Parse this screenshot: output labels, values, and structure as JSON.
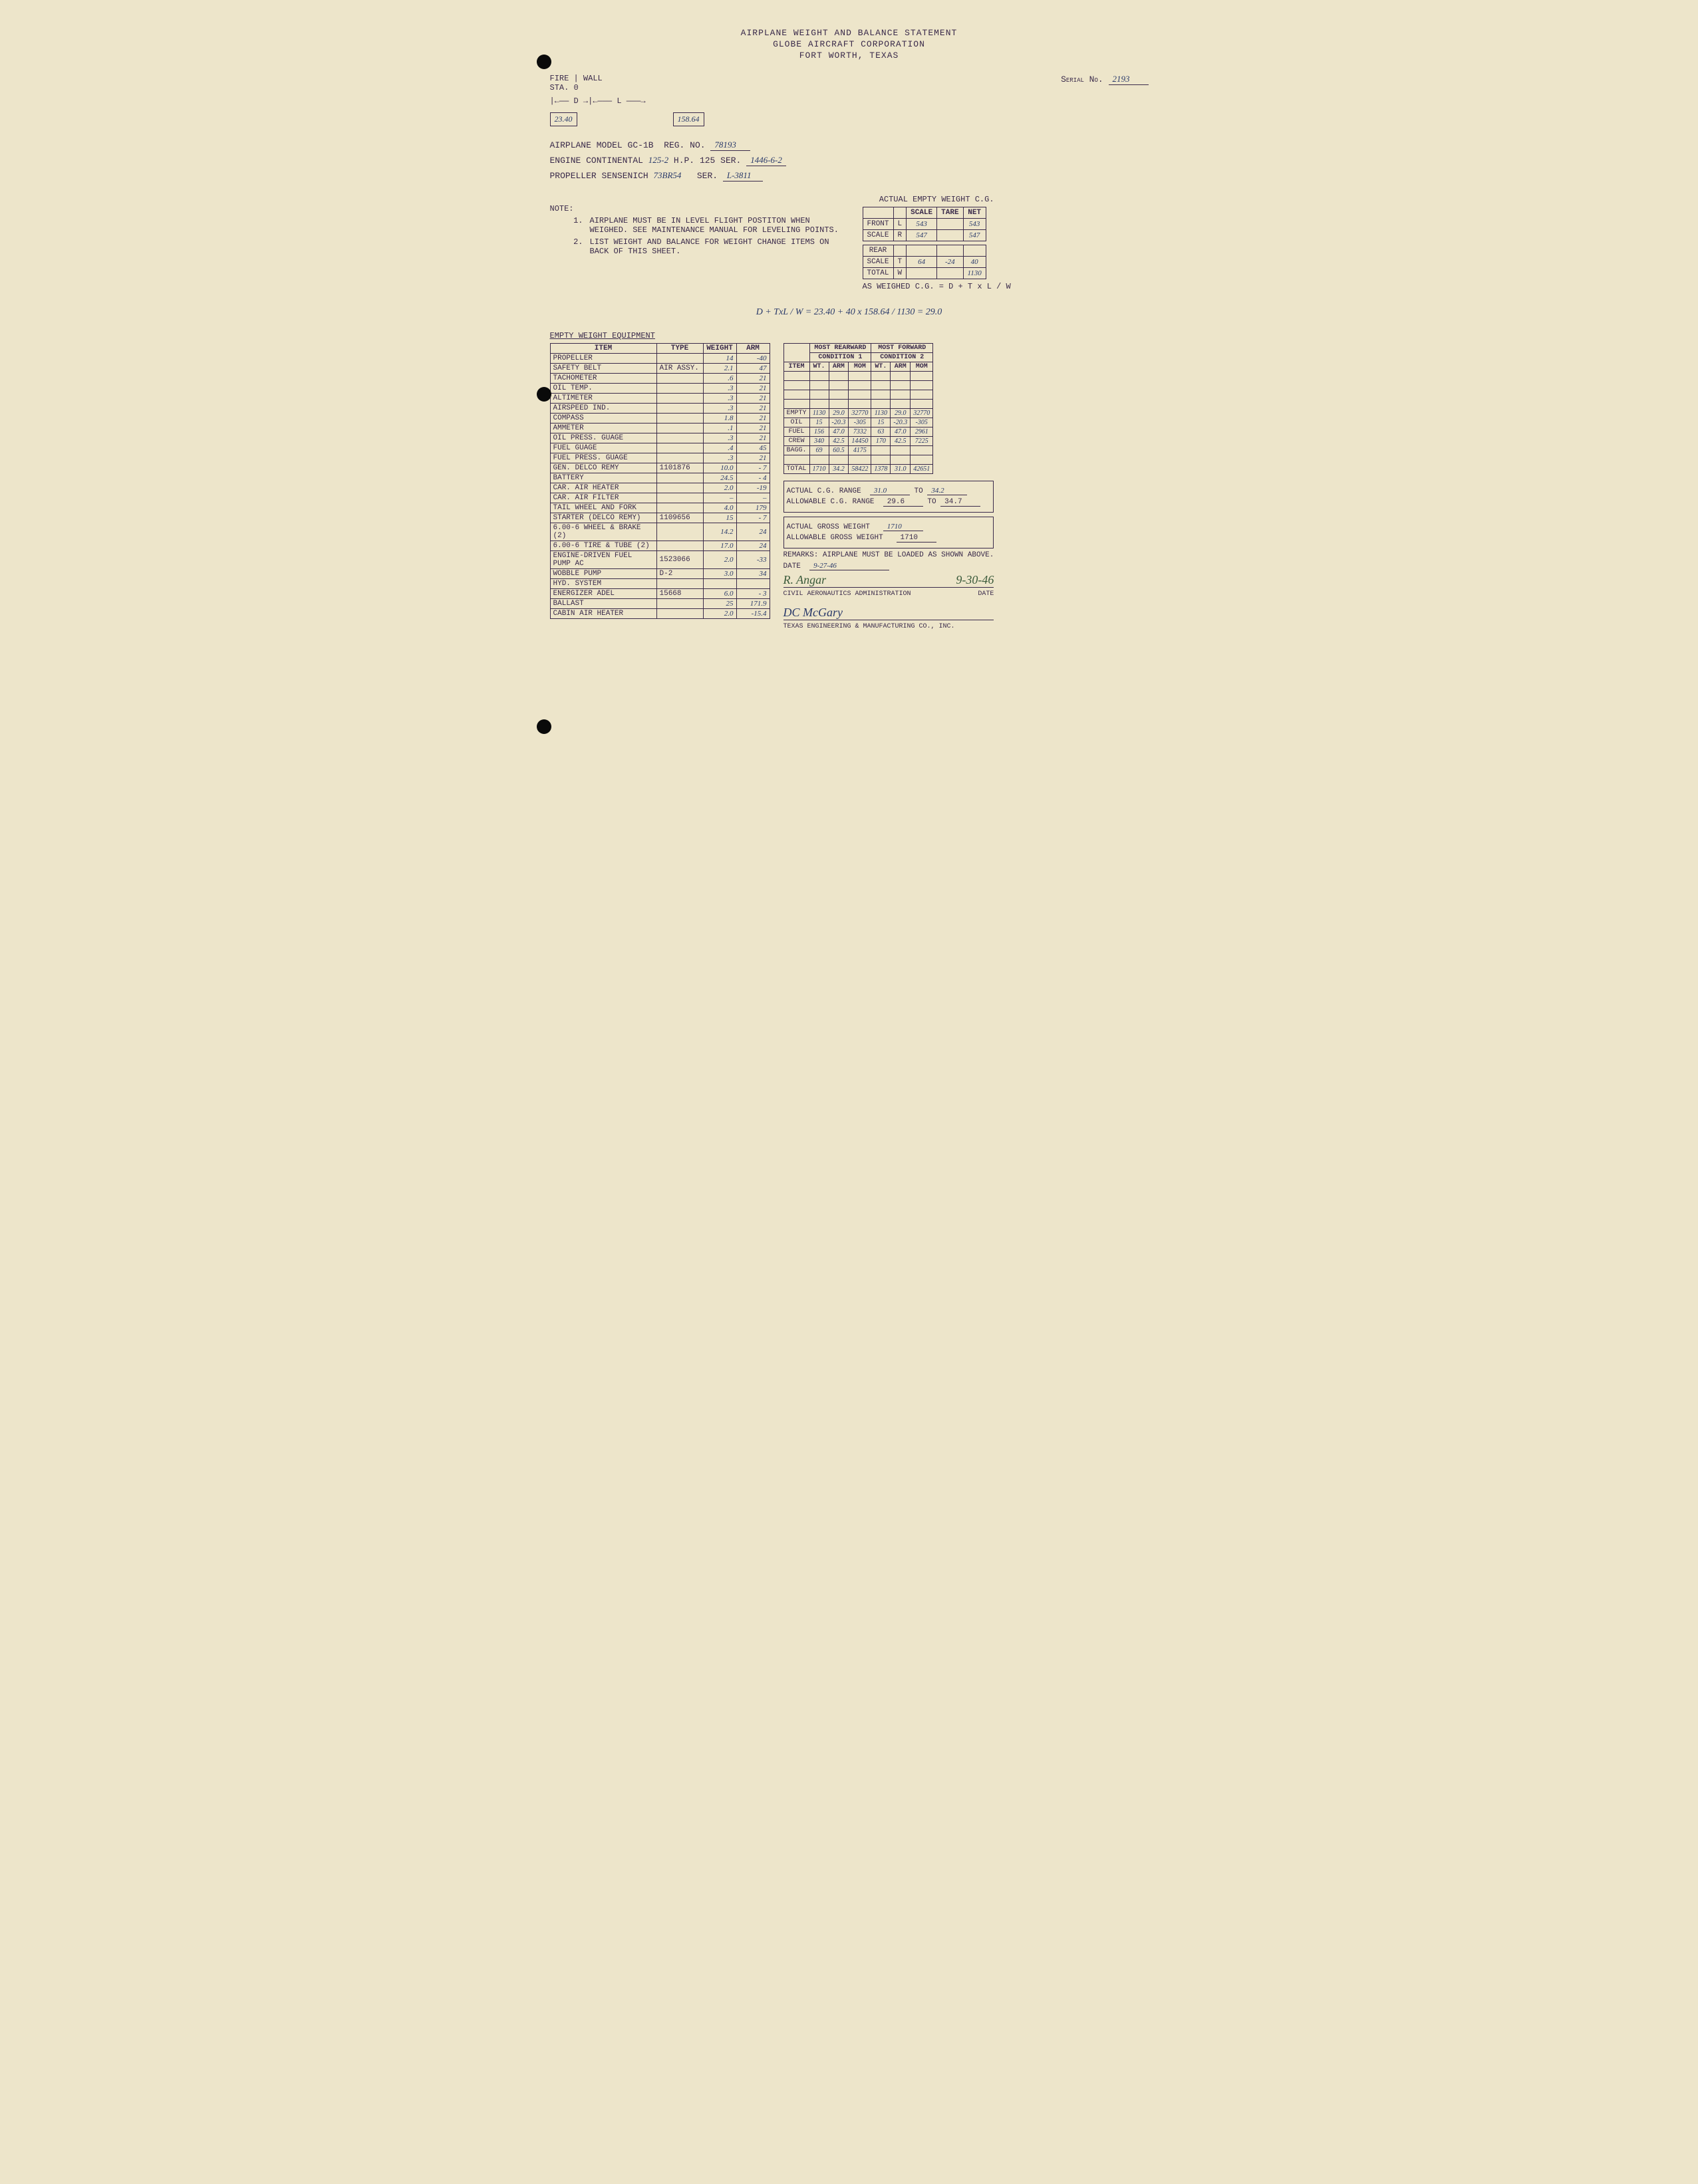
{
  "header": {
    "l1": "AIRPLANE WEIGHT AND BALANCE STATEMENT",
    "l2": "GLOBE AIRCRAFT CORPORATION",
    "l3": "FORT WORTH, TEXAS"
  },
  "serial": {
    "label": "Serial No.",
    "value": "2193"
  },
  "diagram": {
    "fire": "FIRE",
    "wall": "WALL",
    "sta0": "STA. 0",
    "D": "D",
    "L": "L",
    "d_val": "23.40",
    "l_val": "158.64"
  },
  "aircraft": {
    "model_lbl": "AIRPLANE MODEL",
    "model": "GC-1B",
    "reg_lbl": "REG. NO.",
    "reg": "78193",
    "eng_lbl": "ENGINE CONTINENTAL",
    "eng_val": "125-2",
    "hp_lbl": "H.P.",
    "hp": "125",
    "ser_lbl": "SER.",
    "eng_ser": "1446-6-2",
    "prop_lbl": "PROPELLER SENSENICH",
    "prop": "73BR54",
    "prop_ser_lbl": "SER.",
    "prop_ser": "L-3811"
  },
  "notes": {
    "pre": "NOTE:",
    "n1": "1.",
    "t1": "AIRPLANE MUST BE IN LEVEL FLIGHT POSTITON WHEN WEIGHED. SEE MAINTENANCE MANUAL FOR LEVELING POINTS.",
    "n2": "2.",
    "t2": "LIST WEIGHT AND BALANCE FOR WEIGHT CHANGE ITEMS ON BACK OF THIS SHEET."
  },
  "cg_table": {
    "title": "ACTUAL EMPTY WEIGHT C.G.",
    "h_scale": "SCALE",
    "h_tare": "TARE",
    "h_net": "NET",
    "front": "FRONT",
    "scale": "SCALE",
    "rear": "REAR",
    "total": "TOTAL",
    "L": "L",
    "R": "R",
    "T": "T",
    "W": "W",
    "fl_scale": "543",
    "fl_tare": "",
    "fl_net": "543",
    "fr_scale": "547",
    "fr_tare": "",
    "fr_net": "547",
    "rt_scale": "64",
    "rt_tare": "-24",
    "rt_net": "40",
    "tot_net": "1130",
    "formula": "AS WEIGHED C.G.   = D +  T x L / W"
  },
  "calc": "D  +  TxL / W   =  23.40  +   40 x 158.64 / 1130  =  29.0",
  "eq_title": "EMPTY WEIGHT EQUIPMENT",
  "eq_headers": {
    "item": "ITEM",
    "type": "TYPE",
    "weight": "WEIGHT",
    "arm": "ARM"
  },
  "eq": [
    {
      "item": "PROPELLER",
      "type": "",
      "wt": "14",
      "arm": "-40"
    },
    {
      "item": "SAFETY BELT",
      "type": "AIR ASSY.",
      "wt": "2.1",
      "arm": "47"
    },
    {
      "item": "TACHOMETER",
      "type": "",
      "wt": ".6",
      "arm": "21"
    },
    {
      "item": "OIL TEMP.",
      "type": "",
      "wt": ".3",
      "arm": "21"
    },
    {
      "item": "ALTIMETER",
      "type": "",
      "wt": ".3",
      "arm": "21"
    },
    {
      "item": "AIRSPEED IND.",
      "type": "",
      "wt": ".3",
      "arm": "21"
    },
    {
      "item": "COMPASS",
      "type": "",
      "wt": "1.8",
      "arm": "21"
    },
    {
      "item": "AMMETER",
      "type": "",
      "wt": ".1",
      "arm": "21"
    },
    {
      "item": "OIL PRESS. GUAGE",
      "type": "",
      "wt": ".3",
      "arm": "21"
    },
    {
      "item": "FUEL GUAGE",
      "type": "",
      "wt": ".4",
      "arm": "45"
    },
    {
      "item": "FUEL PRESS. GUAGE",
      "type": "",
      "wt": ".3",
      "arm": "21"
    },
    {
      "item": "GEN. DELCO REMY",
      "type": "1101876",
      "wt": "10.0",
      "arm": "- 7"
    },
    {
      "item": "BATTERY",
      "type": "",
      "wt": "24.5",
      "arm": "- 4"
    },
    {
      "item": "CAR. AIR HEATER",
      "type": "",
      "wt": "2.0",
      "arm": "-19"
    },
    {
      "item": "CAR. AIR FILTER",
      "type": "",
      "wt": "–",
      "arm": "–"
    },
    {
      "item": "TAIL WHEEL AND FORK",
      "type": "",
      "wt": "4.0",
      "arm": "179"
    },
    {
      "item": "STARTER (DELCO REMY)",
      "type": "1109656",
      "wt": "15",
      "arm": "- 7"
    },
    {
      "item": "6.00-6 WHEEL & BRAKE (2)",
      "type": "",
      "wt": "14.2",
      "arm": "24"
    },
    {
      "item": "6.00-6 TIRE & TUBE (2)",
      "type": "",
      "wt": "17.0",
      "arm": "24"
    },
    {
      "item": "ENGINE-DRIVEN FUEL PUMP   AC",
      "type": "1523066",
      "wt": "2.0",
      "arm": "-33"
    },
    {
      "item": "WOBBLE PUMP",
      "type": "D-2",
      "wt": "3.0",
      "arm": "34"
    },
    {
      "item": "HYD. SYSTEM",
      "type": "",
      "wt": "",
      "arm": ""
    },
    {
      "item": "ENERGIZER  ADEL",
      "type": "15668",
      "wt": "6.0",
      "arm": "- 3"
    },
    {
      "item": "BALLAST",
      "type": "",
      "wt": "25",
      "arm": "171.9"
    },
    {
      "item": "CABIN AIR HEATER",
      "type": "",
      "wt": "2.0",
      "arm": "-15.4"
    }
  ],
  "cond": {
    "rear_title": "MOST REARWARD",
    "cond1": "CONDITION 1",
    "fwd_title": "MOST FORWARD",
    "cond2": "CONDITION 2",
    "h_item": "ITEM",
    "h_wt": "WT.",
    "h_arm": "ARM",
    "h_mom": "MOM",
    "rows": [
      {
        "item": "EMPTY",
        "wt1": "1130",
        "arm1": "29.0",
        "mom1": "32770",
        "wt2": "1130",
        "arm2": "29.0",
        "mom2": "32770"
      },
      {
        "item": "OIL",
        "wt1": "15",
        "arm1": "-20.3",
        "mom1": "-305",
        "wt2": "15",
        "arm2": "-20.3",
        "mom2": "-305"
      },
      {
        "item": "FUEL",
        "wt1": "156",
        "arm1": "47.0",
        "mom1": "7332",
        "wt2": "63",
        "arm2": "47.0",
        "mom2": "2961"
      },
      {
        "item": "CREW",
        "wt1": "340",
        "arm1": "42.5",
        "mom1": "14450",
        "wt2": "170",
        "arm2": "42.5",
        "mom2": "7225"
      },
      {
        "item": "BAGG.",
        "wt1": "69",
        "arm1": "60.5",
        "mom1": "4175",
        "wt2": "",
        "arm2": "",
        "mom2": ""
      }
    ],
    "total_lbl": "TOTAL",
    "tot": {
      "wt1": "1710",
      "arm1": "34.2",
      "mom1": "58422",
      "wt2": "1378",
      "arm2": "31.0",
      "mom2": "42651"
    }
  },
  "summary": {
    "acg_lbl": "ACTUAL C.G. RANGE",
    "acg_from": "31.0",
    "to": "TO",
    "acg_to": "34.2",
    "allcg_lbl": "ALLOWABLE C.G. RANGE",
    "allcg_from": "29.6",
    "allcg_to": "34.7",
    "agw_lbl": "ACTUAL GROSS WEIGHT",
    "agw": "1710",
    "allgw_lbl": "ALLOWABLE GROSS WEIGHT",
    "allgw": "1710",
    "remarks_lbl": "REMARKS:",
    "remarks": "AIRPLANE MUST BE LOADED AS SHOWN ABOVE.",
    "date_lbl": "DATE",
    "date": "9-27-46",
    "sig1": "R. Angar",
    "sig1_date": "9-30-46",
    "caa": "CIVIL AERONAUTICS ADMINISTRATION",
    "caa_date": "DATE",
    "sig2": "DC McGary",
    "tex": "TEXAS ENGINEERING & MANUFACTURING CO., INC."
  }
}
